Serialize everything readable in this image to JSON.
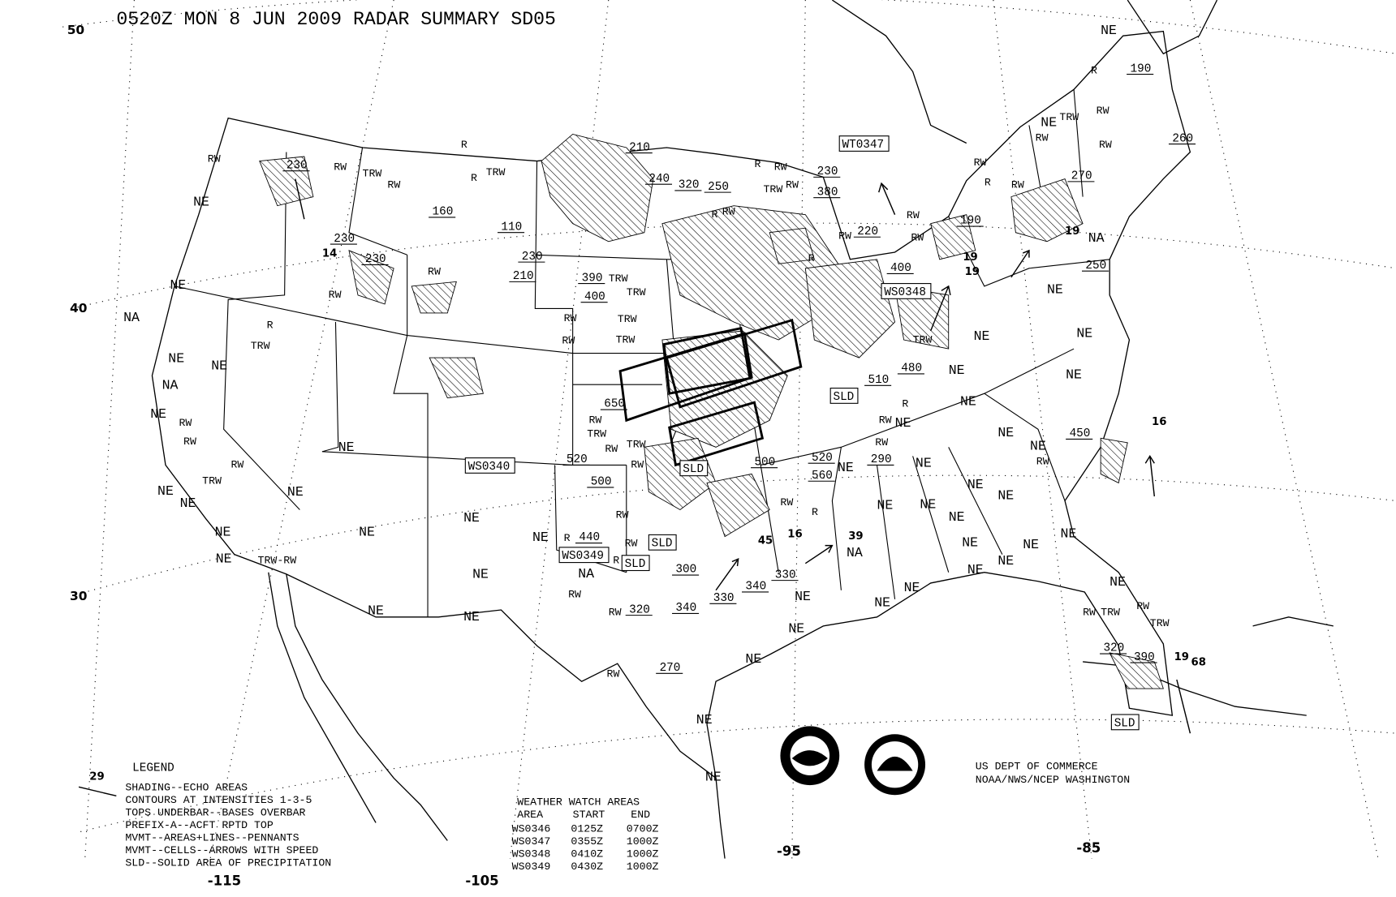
{
  "header": {
    "title": "0520Z MON  8 JUN 2009 RADAR SUMMARY SD05"
  },
  "latitude_labels": [
    "50",
    "40",
    "30"
  ],
  "longitude_labels": [
    "-115",
    "-105",
    "-95",
    "-85"
  ],
  "legend": {
    "title": "LEGEND",
    "lines": [
      "SHADING--ECHO AREAS",
      "CONTOURS AT INTENSITIES 1-3-5",
      "TOPS UNDERBAR--BASES OVERBAR",
      "PREFIX-A--ACFT RPTD TOP",
      "MVMT--AREAS+LINES--PENNANTS",
      "MVMT--CELLS--ARROWS WITH SPEED",
      "SLD--SOLID AREA OF PRECIPITATION"
    ]
  },
  "watch_table": {
    "title": "WEATHER WATCH AREAS",
    "columns": [
      "AREA",
      "START",
      "END"
    ],
    "rows": [
      [
        "WS0346",
        "0125Z",
        "0700Z"
      ],
      [
        "WS0347",
        "0355Z",
        "1000Z"
      ],
      [
        "WS0348",
        "0410Z",
        "1000Z"
      ],
      [
        "WS0349",
        "0430Z",
        "1000Z"
      ]
    ]
  },
  "credit": {
    "line1": "US DEPT OF COMMERCE",
    "line2": "NOAA/NWS/NCEP WASHINGTON"
  },
  "logos": [
    {
      "name": "noaa-logo",
      "text": "NOAA"
    },
    {
      "name": "nws-logo",
      "text": "NATIONAL WEATHER SERVICE"
    }
  ],
  "boxed_labels": [
    "WT0347",
    "WS0348",
    "WS0340",
    "WS0349",
    "SLD",
    "SLD",
    "SLD",
    "SLD",
    "SLD"
  ],
  "echo_tops": [
    "230",
    "230",
    "230",
    "160",
    "110",
    "230",
    "210",
    "390",
    "400",
    "210",
    "240",
    "320",
    "250",
    "230",
    "380",
    "220",
    "400",
    "480",
    "510",
    "250",
    "270",
    "190",
    "260",
    "190",
    "450",
    "520",
    "500",
    "560",
    "290",
    "520",
    "500",
    "440",
    "300",
    "330",
    "340",
    "330",
    "320",
    "340",
    "270",
    "320",
    "390",
    "650"
  ],
  "coverage_labels": {
    "ne": [
      "NE",
      "NE",
      "NE",
      "NE",
      "NE",
      "NE",
      "NE",
      "NE",
      "NE",
      "NE",
      "NE",
      "NE",
      "NE",
      "NE",
      "NE",
      "NE",
      "NE",
      "NE",
      "NE",
      "NE",
      "NE",
      "NE",
      "NE",
      "NE",
      "NE",
      "NE",
      "NE",
      "NE",
      "NE",
      "NE",
      "NE",
      "NE",
      "NE",
      "NE",
      "NE",
      "NE",
      "NE",
      "NE",
      "NE",
      "NE",
      "NE",
      "NE",
      "NE",
      "NE",
      "NE",
      "NE",
      "NE",
      "NE"
    ],
    "na": [
      "NA",
      "NA",
      "NA",
      "NA",
      "NA"
    ]
  },
  "precip_labels": [
    "RW",
    "RW",
    "TRW",
    "RW",
    "R",
    "TRW",
    "RW",
    "R",
    "RW",
    "TRW",
    "RW",
    "RW",
    "TRW",
    "R",
    "RW",
    "TRW",
    "TRW",
    "RW",
    "TRW",
    "RW",
    "TRW",
    "RW",
    "TRW",
    "RW",
    "TRW",
    "RW",
    "R",
    "RW",
    "RW",
    "R",
    "RW",
    "R",
    "RW",
    "TRW",
    "RW",
    "R",
    "RW",
    "RW",
    "RW",
    "TRW",
    "R",
    "RW",
    "RW",
    "RW",
    "R",
    "RW",
    "RW",
    "RW",
    "RW",
    "R",
    "RW",
    "TRW",
    "RW",
    "TRW",
    "RW",
    "TRW-RW",
    "RW",
    "RW",
    "TRW",
    "RW",
    "R",
    "RW",
    "R"
  ],
  "speed_labels": [
    "14",
    "19",
    "19",
    "19",
    "16",
    "39",
    "45",
    "16",
    "29",
    "19",
    "68"
  ],
  "colors": {
    "background": "#ffffff",
    "ink": "#000000"
  }
}
